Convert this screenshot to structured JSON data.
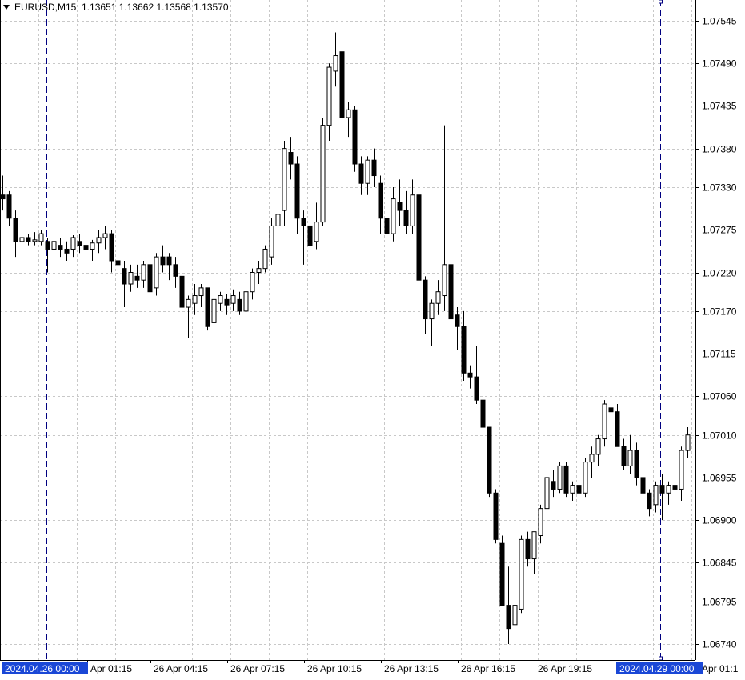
{
  "header": {
    "symbol": "EURUSD,M15",
    "quote": "1.13651 1.13662 1.13568 1.13570"
  },
  "colors": {
    "background": "#ffffff",
    "grid": "#c8c8c8",
    "frame": "#000000",
    "bull_body": "#ffffff",
    "bear_body": "#000000",
    "period_separator": "#000080",
    "highlight_label_bg": "#1a47d6",
    "highlight_label_text": "#ffffff"
  },
  "x_axis": {
    "highlight_left": "2024.04.26 00:00",
    "highlight_right": "2024.04.29 00:00",
    "labels": [
      "Apr 01:15",
      "26 Apr 04:15",
      "26 Apr 07:15",
      "26 Apr 10:15",
      "26 Apr 13:15",
      "26 Apr 16:15",
      "26 Apr 19:15",
      "Apr 01:1"
    ]
  },
  "chart_data": {
    "type": "candlestick",
    "symbol": "EURUSD",
    "timeframe": "M15",
    "ylim": [
      1.0671,
      1.0758
    ],
    "y_ticks": [
      "1.07545",
      "1.07490",
      "1.07435",
      "1.07380",
      "1.07330",
      "1.07275",
      "1.07220",
      "1.07170",
      "1.07115",
      "1.07060",
      "1.07010",
      "1.06955",
      "1.06900",
      "1.06845",
      "1.06795",
      "1.06740"
    ],
    "grid": true,
    "candles": [
      [
        1.0732,
        1.07345,
        1.073,
        1.07315
      ],
      [
        1.0732,
        1.07325,
        1.0728,
        1.0729
      ],
      [
        1.0729,
        1.073,
        1.0724,
        1.0726
      ],
      [
        1.0726,
        1.07275,
        1.0725,
        1.07265
      ],
      [
        1.07265,
        1.0727,
        1.07255,
        1.0726
      ],
      [
        1.0726,
        1.07272,
        1.07255,
        1.07262
      ],
      [
        1.0726,
        1.07275,
        1.07255,
        1.0727
      ],
      [
        1.0726,
        1.07265,
        1.0722,
        1.0725
      ],
      [
        1.0725,
        1.07265,
        1.0723,
        1.0726
      ],
      [
        1.07255,
        1.07265,
        1.0724,
        1.0725
      ],
      [
        1.0725,
        1.0726,
        1.07235,
        1.07245
      ],
      [
        1.0725,
        1.07268,
        1.0724,
        1.07265
      ],
      [
        1.0726,
        1.0727,
        1.07245,
        1.07255
      ],
      [
        1.07255,
        1.07265,
        1.0724,
        1.0725
      ],
      [
        1.0725,
        1.07262,
        1.07235,
        1.07258
      ],
      [
        1.07258,
        1.07275,
        1.07245,
        1.07265
      ],
      [
        1.07265,
        1.0728,
        1.0725,
        1.0727
      ],
      [
        1.0727,
        1.07275,
        1.0722,
        1.07235
      ],
      [
        1.07235,
        1.0725,
        1.0721,
        1.0723
      ],
      [
        1.07225,
        1.07235,
        1.07175,
        1.07205
      ],
      [
        1.07205,
        1.0723,
        1.07195,
        1.0722
      ],
      [
        1.07215,
        1.0723,
        1.072,
        1.0721
      ],
      [
        1.0721,
        1.07235,
        1.072,
        1.0723
      ],
      [
        1.0723,
        1.07245,
        1.07185,
        1.07195
      ],
      [
        1.072,
        1.07245,
        1.0719,
        1.0724
      ],
      [
        1.0724,
        1.07255,
        1.0722,
        1.0723
      ],
      [
        1.0724,
        1.07245,
        1.0721,
        1.0723
      ],
      [
        1.0723,
        1.0724,
        1.072,
        1.07215
      ],
      [
        1.07215,
        1.0722,
        1.07165,
        1.07175
      ],
      [
        1.07175,
        1.0719,
        1.07135,
        1.07185
      ],
      [
        1.0718,
        1.07205,
        1.07165,
        1.0719
      ],
      [
        1.0719,
        1.07205,
        1.07175,
        1.072
      ],
      [
        1.072,
        1.072,
        1.07145,
        1.0715
      ],
      [
        1.07155,
        1.07195,
        1.07145,
        1.07185
      ],
      [
        1.0718,
        1.07195,
        1.0717,
        1.0719
      ],
      [
        1.07185,
        1.07192,
        1.07165,
        1.07178
      ],
      [
        1.0718,
        1.07198,
        1.0717,
        1.0719
      ],
      [
        1.07185,
        1.07195,
        1.07165,
        1.0717
      ],
      [
        1.0717,
        1.072,
        1.0716,
        1.07195
      ],
      [
        1.07195,
        1.07225,
        1.07185,
        1.0722
      ],
      [
        1.0722,
        1.07235,
        1.07205,
        1.07225
      ],
      [
        1.07225,
        1.07255,
        1.0722,
        1.0725
      ],
      [
        1.0724,
        1.0729,
        1.0723,
        1.0728
      ],
      [
        1.0728,
        1.0731,
        1.0726,
        1.07295
      ],
      [
        1.073,
        1.0739,
        1.0728,
        1.0738
      ],
      [
        1.07375,
        1.07395,
        1.0734,
        1.0736
      ],
      [
        1.0736,
        1.0737,
        1.0727,
        1.0729
      ],
      [
        1.0729,
        1.073,
        1.0723,
        1.0728
      ],
      [
        1.0728,
        1.073,
        1.0724,
        1.07255
      ],
      [
        1.0726,
        1.0731,
        1.0725,
        1.07285
      ],
      [
        1.07285,
        1.0742,
        1.0728,
        1.0741
      ],
      [
        1.0741,
        1.0749,
        1.0739,
        1.07485
      ],
      [
        1.0748,
        1.0753,
        1.0746,
        1.075
      ],
      [
        1.07505,
        1.0751,
        1.074,
        1.0742
      ],
      [
        1.0742,
        1.0744,
        1.07395,
        1.0743
      ],
      [
        1.0743,
        1.07435,
        1.0735,
        1.0736
      ],
      [
        1.0736,
        1.0737,
        1.0732,
        1.07335
      ],
      [
        1.07335,
        1.0737,
        1.0732,
        1.07365
      ],
      [
        1.07365,
        1.0738,
        1.0733,
        1.07345
      ],
      [
        1.07335,
        1.07345,
        1.0727,
        1.0729
      ],
      [
        1.0729,
        1.073,
        1.0725,
        1.0727
      ],
      [
        1.0727,
        1.0733,
        1.0726,
        1.07315
      ],
      [
        1.0731,
        1.0734,
        1.0728,
        1.073
      ],
      [
        1.073,
        1.07325,
        1.0727,
        1.0728
      ],
      [
        1.0728,
        1.0734,
        1.0727,
        1.0732
      ],
      [
        1.0732,
        1.0733,
        1.072,
        1.0721
      ],
      [
        1.0721,
        1.07215,
        1.0714,
        1.0716
      ],
      [
        1.0716,
        1.07185,
        1.07125,
        1.0718
      ],
      [
        1.0718,
        1.0721,
        1.07165,
        1.07195
      ],
      [
        1.0719,
        1.0741,
        1.0717,
        1.0723
      ],
      [
        1.0723,
        1.07235,
        1.0715,
        1.0716
      ],
      [
        1.07165,
        1.07175,
        1.0712,
        1.0715
      ],
      [
        1.0715,
        1.0717,
        1.0708,
        1.0709
      ],
      [
        1.0709,
        1.071,
        1.0707,
        1.07085
      ],
      [
        1.07085,
        1.07125,
        1.0705,
        1.07055
      ],
      [
        1.07055,
        1.0706,
        1.07015,
        1.0702
      ],
      [
        1.0702,
        1.0702,
        1.0693,
        1.06935
      ],
      [
        1.06935,
        1.0694,
        1.0687,
        1.06875
      ],
      [
        1.0687,
        1.0688,
        1.0679,
        1.0679
      ],
      [
        1.0679,
        1.0684,
        1.0674,
        1.0676
      ],
      [
        1.06765,
        1.0681,
        1.0674,
        1.0679
      ],
      [
        1.06785,
        1.0688,
        1.0678,
        1.06875
      ],
      [
        1.06875,
        1.06885,
        1.0684,
        1.0685
      ],
      [
        1.0685,
        1.0688,
        1.0683,
        1.06885
      ],
      [
        1.0688,
        1.0692,
        1.0687,
        1.06915
      ],
      [
        1.06915,
        1.0696,
        1.0691,
        1.06955
      ],
      [
        1.0695,
        1.06965,
        1.0693,
        1.0694
      ],
      [
        1.0694,
        1.06975,
        1.06935,
        1.0697
      ],
      [
        1.0697,
        1.06975,
        1.0693,
        1.06935
      ],
      [
        1.06935,
        1.0695,
        1.06925,
        1.06945
      ],
      [
        1.06945,
        1.0695,
        1.0693,
        1.06935
      ],
      [
        1.06935,
        1.0698,
        1.0693,
        1.06975
      ],
      [
        1.06975,
        1.06995,
        1.06955,
        1.06985
      ],
      [
        1.06985,
        1.0701,
        1.0697,
        1.07005
      ],
      [
        1.07005,
        1.07055,
        1.06995,
        1.0705
      ],
      [
        1.07045,
        1.0707,
        1.0703,
        1.0704
      ],
      [
        1.0704,
        1.0705,
        1.06995,
        1.06995
      ],
      [
        1.06995,
        1.07005,
        1.06965,
        1.0697
      ],
      [
        1.0697,
        1.0701,
        1.0696,
        1.0699
      ],
      [
        1.0699,
        1.07,
        1.06945,
        1.06955
      ],
      [
        1.06955,
        1.06965,
        1.06915,
        1.06935
      ],
      [
        1.06935,
        1.0694,
        1.06905,
        1.06915
      ],
      [
        1.0692,
        1.0695,
        1.0691,
        1.06945
      ],
      [
        1.06945,
        1.0696,
        1.069,
        1.06935
      ],
      [
        1.06935,
        1.0695,
        1.0692,
        1.06945
      ],
      [
        1.06945,
        1.06955,
        1.06925,
        1.0694
      ],
      [
        1.0694,
        1.06995,
        1.06925,
        1.0699
      ],
      [
        1.0699,
        1.0702,
        1.0698,
        1.0701
      ]
    ]
  }
}
